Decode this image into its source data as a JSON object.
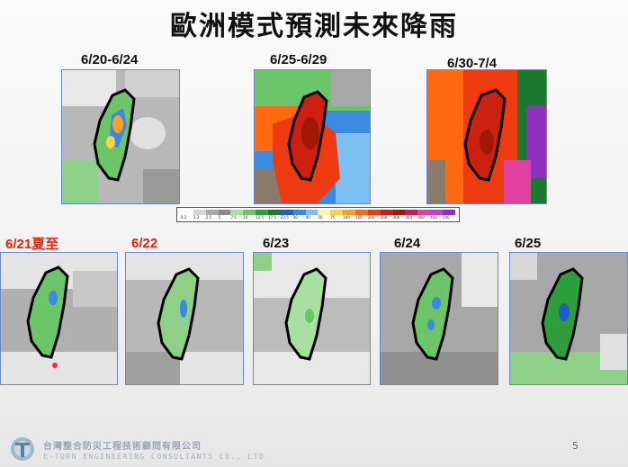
{
  "title": "歐洲模式預測未來降雨",
  "weekly": [
    {
      "label": "6/20-6/24",
      "style": "light"
    },
    {
      "label": "6/25-6/29",
      "style": "heavy"
    },
    {
      "label": "6/30-7/4",
      "style": "extreme"
    }
  ],
  "daily": [
    {
      "label": "6/21夏至",
      "color": "red"
    },
    {
      "label": "6/22",
      "color": "red"
    },
    {
      "label": "6/23",
      "color": "black"
    },
    {
      "label": "6/24",
      "color": "black"
    },
    {
      "label": "6/25",
      "color": "black"
    }
  ],
  "legend": {
    "ticks": [
      "0.2",
      "1.2",
      "2.5",
      "5",
      "7.5",
      "10",
      "12.5",
      "17.5",
      "22.5",
      "30",
      "40",
      "50",
      "75",
      "100",
      "150",
      "200",
      "250",
      "300",
      "350",
      "400",
      "450",
      "500"
    ],
    "colors": [
      "#ffffff",
      "#d6d6d6",
      "#a8a8a8",
      "#8a8a8a",
      "#a7e0a0",
      "#6dc56a",
      "#2e9e3c",
      "#1c7a30",
      "#1f5fc0",
      "#3a8ae0",
      "#7dbff0",
      "#fff2a0",
      "#ffd24a",
      "#ffa020",
      "#ff6a10",
      "#ee3a10",
      "#cc2010",
      "#a01808",
      "#c02060",
      "#e040a0",
      "#c040d0",
      "#9030c0"
    ]
  },
  "footer": {
    "company": "台灣整合防災工程技術顧問有限公司",
    "company_en": "E-TURN ENGINEERING CONSULTANTS CO., LTD",
    "page": "5"
  }
}
